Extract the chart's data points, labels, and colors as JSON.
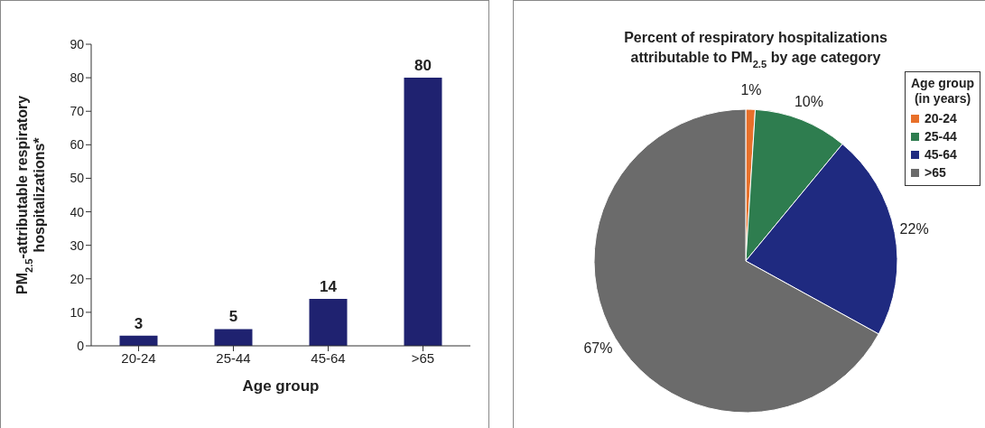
{
  "chart_data": [
    {
      "type": "bar",
      "xlabel": "Age group",
      "ylabel": "PM$_{2.5}$-attributable respiratory hospitalizations*",
      "categories": [
        "20-24",
        "25-44",
        "45-64",
        ">65"
      ],
      "values": [
        3,
        5,
        14,
        80
      ],
      "color": "#1f2270",
      "ylim": [
        0,
        90
      ],
      "yticks": [
        0,
        10,
        20,
        30,
        40,
        50,
        60,
        70,
        80,
        90
      ],
      "data_labels": true
    },
    {
      "type": "pie",
      "title": "Percent of respiratory hospitalizations attributable to PM$_{2.5}$ by age category",
      "legend_title": "Age group (in years)",
      "categories": [
        "20-24",
        "25-44",
        "45-64",
        ">65"
      ],
      "values": [
        1,
        10,
        22,
        67
      ],
      "colors": [
        "#e8702a",
        "#2e7d4f",
        "#1f2a80",
        "#6b6b6b"
      ],
      "value_labels": [
        "1%",
        "10%",
        "22%",
        "67%"
      ],
      "legend": "top right"
    }
  ]
}
